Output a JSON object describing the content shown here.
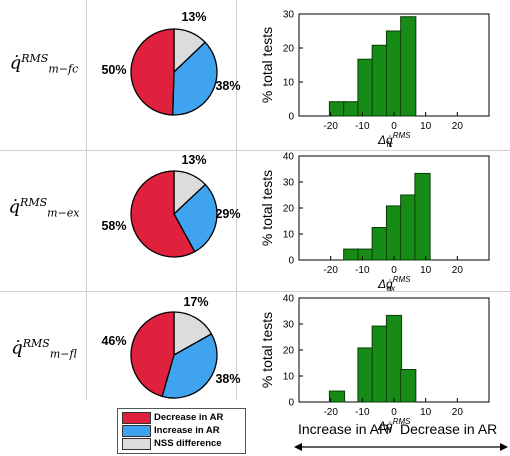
{
  "colors": {
    "decrease": "#e0213e",
    "increase": "#3fa3f0",
    "nss": "#dcdcdc",
    "bar": "#168b16",
    "bar_edge": "#0a3d0a"
  },
  "legend": {
    "decrease": "Decrease in AR",
    "increase": "Increase in AR",
    "nss": "NSS difference"
  },
  "bottom_labels": {
    "increase": "Increase in AR",
    "decrease": "Decrease in AR"
  },
  "rows": [
    {
      "base": "q̇",
      "sup": "RMS",
      "sub": "m−fc"
    },
    {
      "base": "q̇",
      "sup": "RMS",
      "sub": "m−ex"
    },
    {
      "base": "q̇",
      "sup": "RMS",
      "sub": "m−fl"
    }
  ],
  "chart_data": [
    {
      "type": "pie",
      "slices": [
        {
          "name": "Decrease in AR",
          "value": 50,
          "label": "50%"
        },
        {
          "name": "Increase in AR",
          "value": 38,
          "label": "38%"
        },
        {
          "name": "NSS difference",
          "value": 13,
          "label": "13%"
        }
      ]
    },
    {
      "type": "bar",
      "ylabel": "% total tests",
      "xlabel_base": "Δq̇",
      "xlabel_sup": "RMS",
      "xlabel_sub": "fc",
      "xlim": [
        -30,
        30
      ],
      "ylim": [
        0,
        30
      ],
      "yticks": [
        0,
        10,
        20,
        30
      ],
      "xticks": [
        -20,
        -10,
        0,
        10,
        20
      ],
      "bin_width": 4.8,
      "bins": [
        {
          "center": -18,
          "value": 4.2
        },
        {
          "center": -13.5,
          "value": 4.2
        },
        {
          "center": -9,
          "value": 16.7
        },
        {
          "center": -4.5,
          "value": 20.8
        },
        {
          "center": 0,
          "value": 25
        },
        {
          "center": 4.5,
          "value": 29.2
        }
      ]
    },
    {
      "type": "pie",
      "slices": [
        {
          "name": "Decrease in AR",
          "value": 58,
          "label": "58%"
        },
        {
          "name": "Increase in AR",
          "value": 29,
          "label": "29%"
        },
        {
          "name": "NSS difference",
          "value": 13,
          "label": "13%"
        }
      ]
    },
    {
      "type": "bar",
      "ylabel": "% total tests",
      "xlabel_base": "Δq̇",
      "xlabel_sup": "RMS",
      "xlabel_sub": "ex",
      "xlim": [
        -30,
        30
      ],
      "ylim": [
        0,
        40
      ],
      "yticks": [
        0,
        10,
        20,
        30,
        40
      ],
      "xticks": [
        -20,
        -10,
        0,
        10,
        20
      ],
      "bin_width": 4.8,
      "bins": [
        {
          "center": -13.5,
          "value": 4.2
        },
        {
          "center": -9,
          "value": 4.2
        },
        {
          "center": -4.5,
          "value": 12.5
        },
        {
          "center": 0,
          "value": 20.8
        },
        {
          "center": 4.5,
          "value": 25
        },
        {
          "center": 9,
          "value": 33.3
        }
      ]
    },
    {
      "type": "pie",
      "slices": [
        {
          "name": "Decrease in AR",
          "value": 46,
          "label": "46%"
        },
        {
          "name": "Increase in AR",
          "value": 38,
          "label": "38%"
        },
        {
          "name": "NSS difference",
          "value": 17,
          "label": "17%"
        }
      ]
    },
    {
      "type": "bar",
      "ylabel": "% total tests",
      "xlabel_base": "Δq̇",
      "xlabel_sup": "RMS",
      "xlabel_sub": "fl",
      "xlim": [
        -30,
        30
      ],
      "ylim": [
        0,
        40
      ],
      "yticks": [
        0,
        10,
        20,
        30,
        40
      ],
      "xticks": [
        -20,
        -10,
        0,
        10,
        20
      ],
      "bin_width": 4.8,
      "bins": [
        {
          "center": -18,
          "value": 4.2
        },
        {
          "center": -9,
          "value": 20.8
        },
        {
          "center": -4.5,
          "value": 29.2
        },
        {
          "center": 0,
          "value": 33.3
        },
        {
          "center": 4.5,
          "value": 12.5
        }
      ]
    }
  ]
}
